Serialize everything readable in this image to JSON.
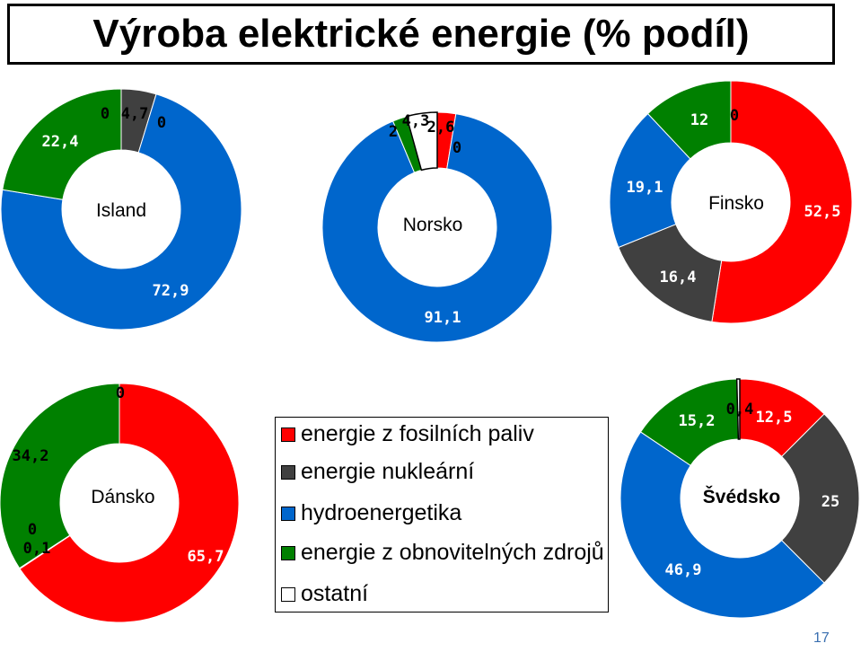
{
  "title": "Výroba elektrické energie (% podíl)",
  "page_number": "17",
  "colors": {
    "fossil": "#ff0000",
    "nuclear": "#404040",
    "hydro": "#0066cc",
    "renewable": "#008000",
    "other": "#ffffff"
  },
  "legend": [
    {
      "label": "energie z fosilních paliv",
      "color": "#ff0000"
    },
    {
      "label": "energie nukleární",
      "color": "#404040"
    },
    {
      "label": "hydroenergetika",
      "color": "#0066cc"
    },
    {
      "label": "energie z obnovitelných zdrojů",
      "color": "#008000"
    },
    {
      "label": "ostatní",
      "color": "#ffffff"
    }
  ],
  "chart_data": [
    {
      "type": "pie",
      "title": "Island",
      "categories": [
        "energie z fosilních paliv",
        "energie nukleární",
        "hydroenergetika",
        "energie z obnovitelných zdrojů",
        "ostatní"
      ],
      "values": [
        0,
        4.7,
        72.9,
        22.4,
        0
      ],
      "labels": [
        "0",
        "4,7",
        "72,9",
        "22,4",
        "0"
      ]
    },
    {
      "type": "pie",
      "title": "Norsko",
      "categories": [
        "energie z fosilních paliv",
        "energie nukleární",
        "hydroenergetika",
        "energie z obnovitelných zdrojů",
        "ostatní"
      ],
      "values": [
        2.6,
        0,
        91.1,
        2,
        4.3
      ],
      "labels": [
        "2,6",
        "0",
        "91,1",
        "2",
        "4,3"
      ]
    },
    {
      "type": "pie",
      "title": "Finsko",
      "categories": [
        "energie z fosilních paliv",
        "energie nukleární",
        "hydroenergetika",
        "energie z obnovitelných zdrojů",
        "ostatní"
      ],
      "values": [
        52.5,
        16.4,
        19.1,
        12,
        0
      ],
      "labels": [
        "52,5",
        "16,4",
        "19,1",
        "12",
        "0"
      ]
    },
    {
      "type": "pie",
      "title": "Dánsko",
      "categories": [
        "energie z fosilních paliv",
        "energie nukleární",
        "hydroenergetika",
        "energie z obnovitelných zdrojů",
        "ostatní"
      ],
      "values": [
        65.7,
        0,
        0.1,
        34.2,
        0
      ],
      "labels": [
        "65,7",
        "0",
        "0,1",
        "34,2",
        "0"
      ]
    },
    {
      "type": "pie",
      "title": "Švédsko",
      "categories": [
        "energie z fosilních paliv",
        "energie nukleární",
        "hydroenergetika",
        "energie z obnovitelných zdrojů",
        "ostatní"
      ],
      "values": [
        12.5,
        25,
        46.9,
        15.2,
        0.4
      ],
      "labels": [
        "12,5",
        "25",
        "46,9",
        "15,2",
        "0,4"
      ]
    }
  ]
}
